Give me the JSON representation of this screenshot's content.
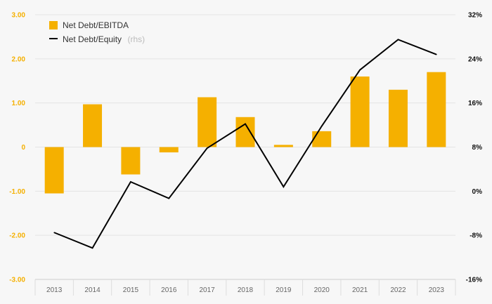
{
  "chart_data": {
    "type": "bar",
    "categories": [
      "2013",
      "2014",
      "2015",
      "2016",
      "2017",
      "2018",
      "2019",
      "2020",
      "2021",
      "2022",
      "2023"
    ],
    "series": [
      {
        "name": "Net Debt/EBITDA",
        "type": "bar",
        "axis": "left",
        "color": "#f5b000",
        "values": [
          -1.05,
          0.97,
          -0.62,
          -0.12,
          1.13,
          0.68,
          0.05,
          0.36,
          1.6,
          1.3,
          1.7
        ]
      },
      {
        "name": "Net Debt/Equity",
        "name_note": "(rhs)",
        "type": "line",
        "axis": "right",
        "color": "#000000",
        "values": [
          -7.5,
          -10.3,
          1.7,
          -1.3,
          7.8,
          12.2,
          0.8,
          11.8,
          22.0,
          27.5,
          24.8
        ]
      }
    ],
    "y_left": {
      "ylim": [
        -3,
        3
      ],
      "ticks": [
        3,
        2,
        1,
        0,
        -1,
        -2,
        -3
      ],
      "tick_labels": [
        "3.00",
        "2.00",
        "1.00",
        "0",
        "-1.00",
        "-2.00",
        "-3.00"
      ]
    },
    "y_right": {
      "ylim": [
        -16,
        32
      ],
      "ticks": [
        32,
        24,
        16,
        8,
        0,
        -8,
        -16
      ],
      "tick_labels": [
        "32%",
        "24%",
        "16%",
        "8%",
        "0%",
        "-8%",
        "-16%"
      ]
    },
    "grid": true,
    "legend_position": "top-left",
    "title": "",
    "xlabel": "",
    "ylabel": ""
  }
}
